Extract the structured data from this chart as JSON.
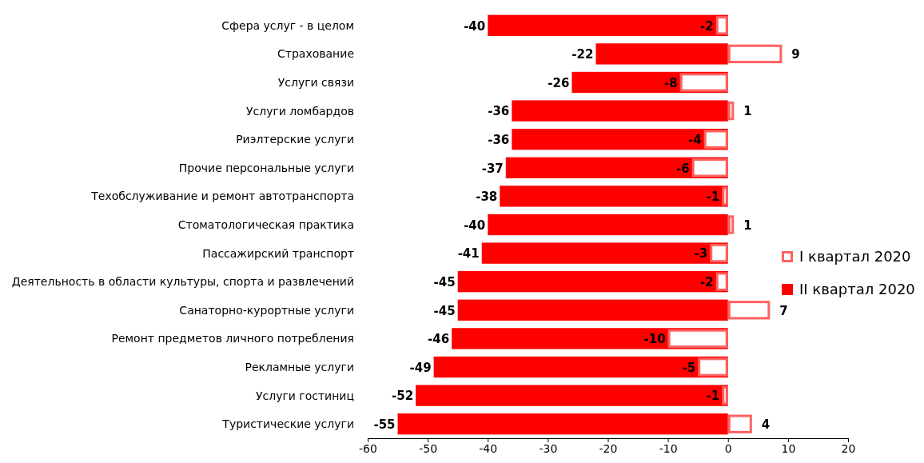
{
  "chart_data": {
    "type": "bar",
    "orientation": "horizontal",
    "categories": [
      "Сфера услуг - в целом",
      "Страхование",
      "Услуги связи",
      "Услуги ломбардов",
      "Риэлтерские услуги",
      "Прочие персональные услуги",
      "Техобслуживание и ремонт автотранспорта",
      "Стоматологическая практика",
      "Пассажирский транспорт",
      "Деятельность в области культуры, спорта и развлечений",
      "Санаторно-курортные услуги",
      "Ремонт предметов личного потребления",
      "Рекламные услуги",
      "Услуги гостиниц",
      "Туристические услуги"
    ],
    "series": [
      {
        "name": "I квартал 2020",
        "color": "#ff6161",
        "values": [
          -2,
          9,
          -8,
          1,
          -4,
          -6,
          -1,
          1,
          -3,
          -2,
          7,
          -10,
          -5,
          -1,
          4
        ]
      },
      {
        "name": "II квартал 2020",
        "color": "#ff0000",
        "values": [
          -40,
          -22,
          -26,
          -36,
          -36,
          -37,
          -38,
          -40,
          -41,
          -45,
          -45,
          -46,
          -49,
          -52,
          -55
        ]
      }
    ],
    "xlim": [
      -60,
      20
    ],
    "xticks": [
      -60,
      -50,
      -40,
      -30,
      -20,
      -10,
      0,
      10,
      20
    ],
    "data_labels": true,
    "legend": "right"
  }
}
